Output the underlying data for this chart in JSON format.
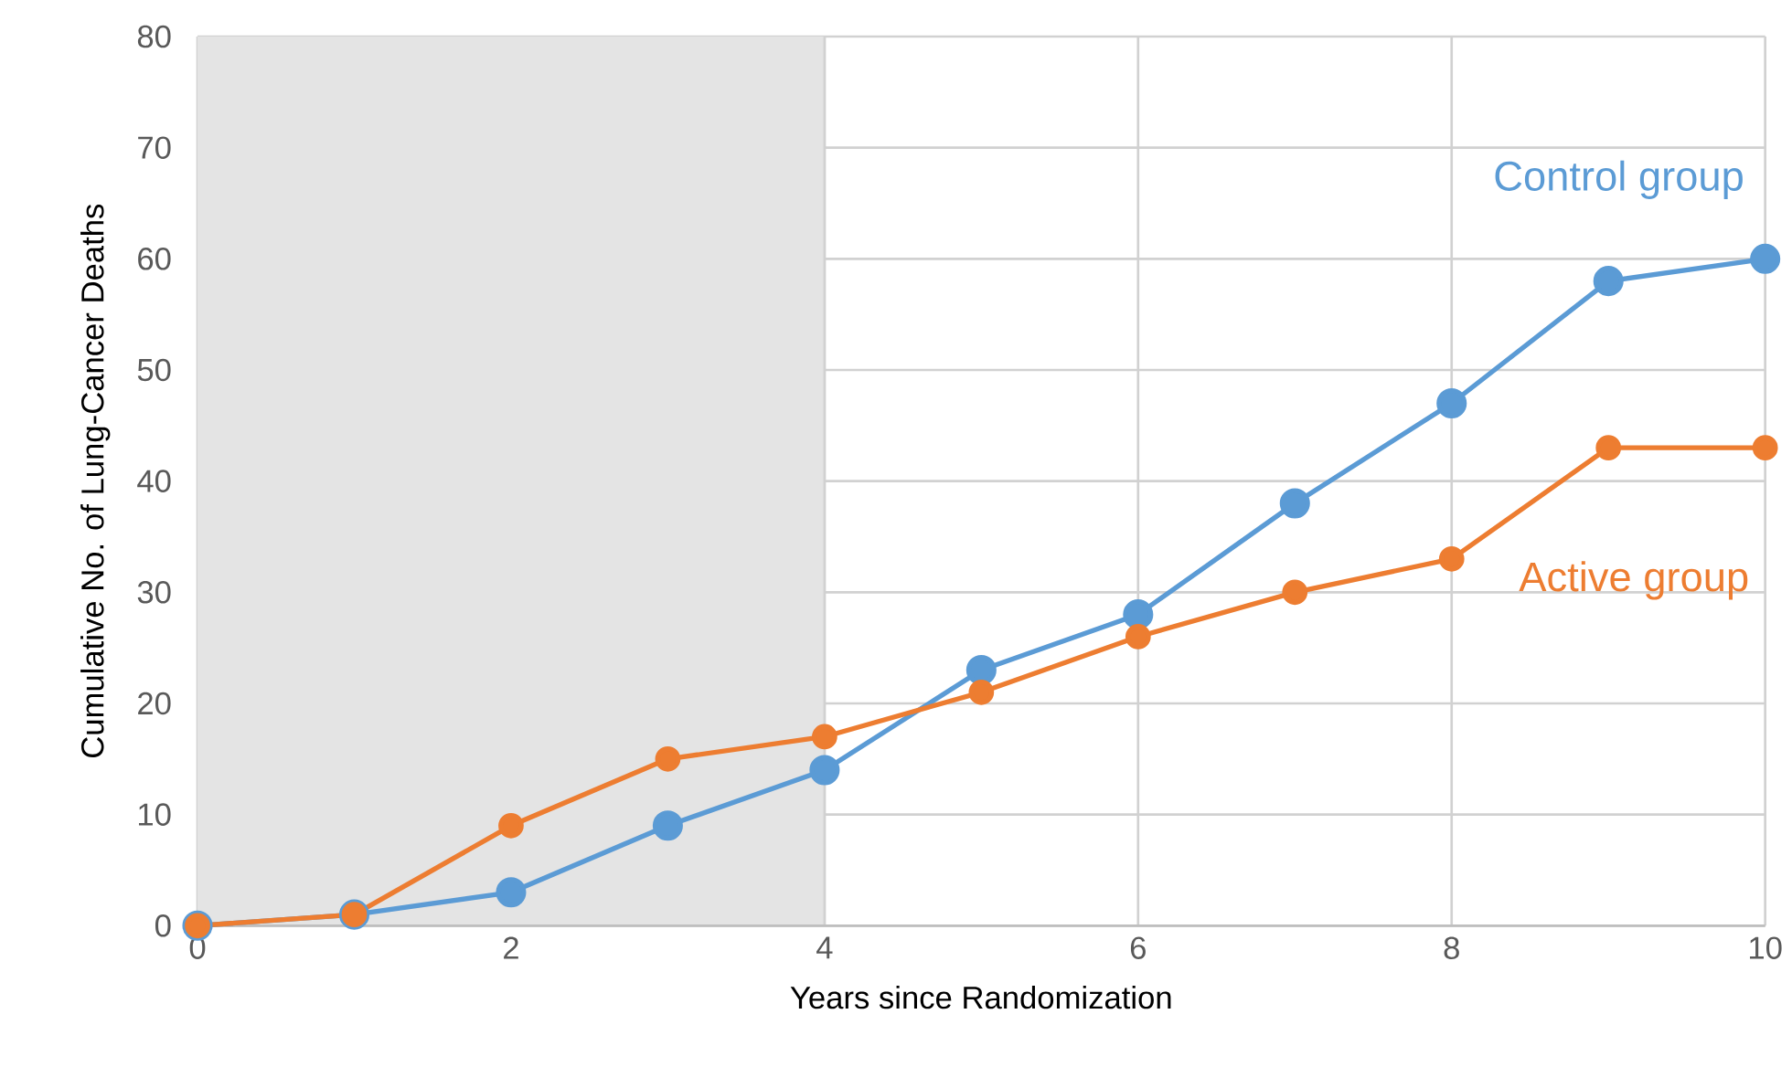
{
  "chart_data": {
    "type": "line",
    "xlabel": "Years since Randomization",
    "ylabel": "Cumulative No. of Lung-Cancer Deaths",
    "x": [
      0,
      1,
      2,
      3,
      4,
      5,
      6,
      7,
      8,
      9,
      10
    ],
    "series": [
      {
        "name": "Control group",
        "color": "#5b9bd5",
        "values": [
          0,
          1,
          3,
          9,
          14,
          23,
          28,
          38,
          47,
          58,
          60
        ]
      },
      {
        "name": "Active group",
        "color": "#ed7d31",
        "values": [
          0,
          1,
          9,
          15,
          17,
          21,
          26,
          30,
          33,
          43,
          43
        ]
      }
    ],
    "xlim": [
      0,
      10
    ],
    "xticks": [
      0,
      2,
      4,
      6,
      8,
      10
    ],
    "ylim": [
      0,
      80
    ],
    "yticks": [
      0,
      10,
      20,
      30,
      40,
      50,
      60,
      70,
      80
    ],
    "bands": [
      {
        "axis": "x",
        "from": 0,
        "to": 4,
        "color": "#e4e4e4"
      }
    ],
    "grid": true,
    "marker": "circle",
    "line_style": "solid"
  }
}
